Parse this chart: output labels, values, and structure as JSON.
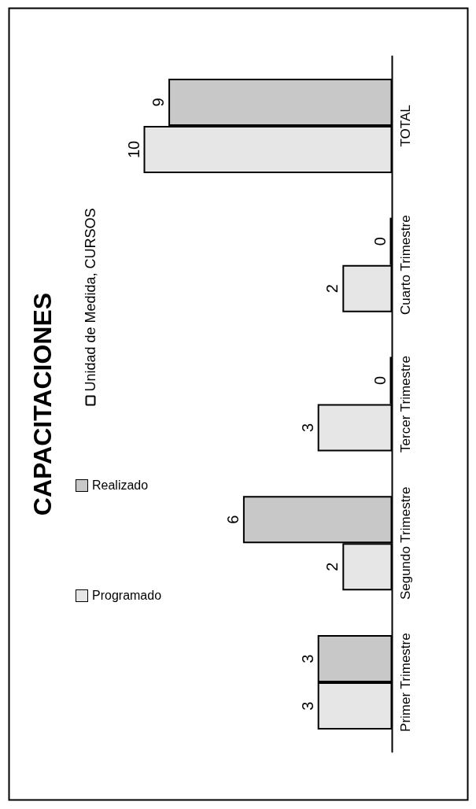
{
  "chart_data": {
    "type": "bar",
    "title": "CAPACITACIONES",
    "orientation": "horizontal",
    "categories": [
      "TOTAL",
      "Cuarto Trimestre",
      "Tercer Trimestre",
      "Segundo Trimestre",
      "Primer Trimestre"
    ],
    "series": [
      {
        "name": "Realizado",
        "color": "#c8c8c8",
        "values": [
          9,
          0,
          0,
          6,
          3
        ]
      },
      {
        "name": "Programado",
        "color": "#e6e6e6",
        "values": [
          10,
          2,
          3,
          2,
          3
        ]
      }
    ],
    "annotations": [
      "Unidad de Medida, CURSOS"
    ],
    "data_labels": true,
    "tick_labels": "y",
    "legend": "left"
  }
}
